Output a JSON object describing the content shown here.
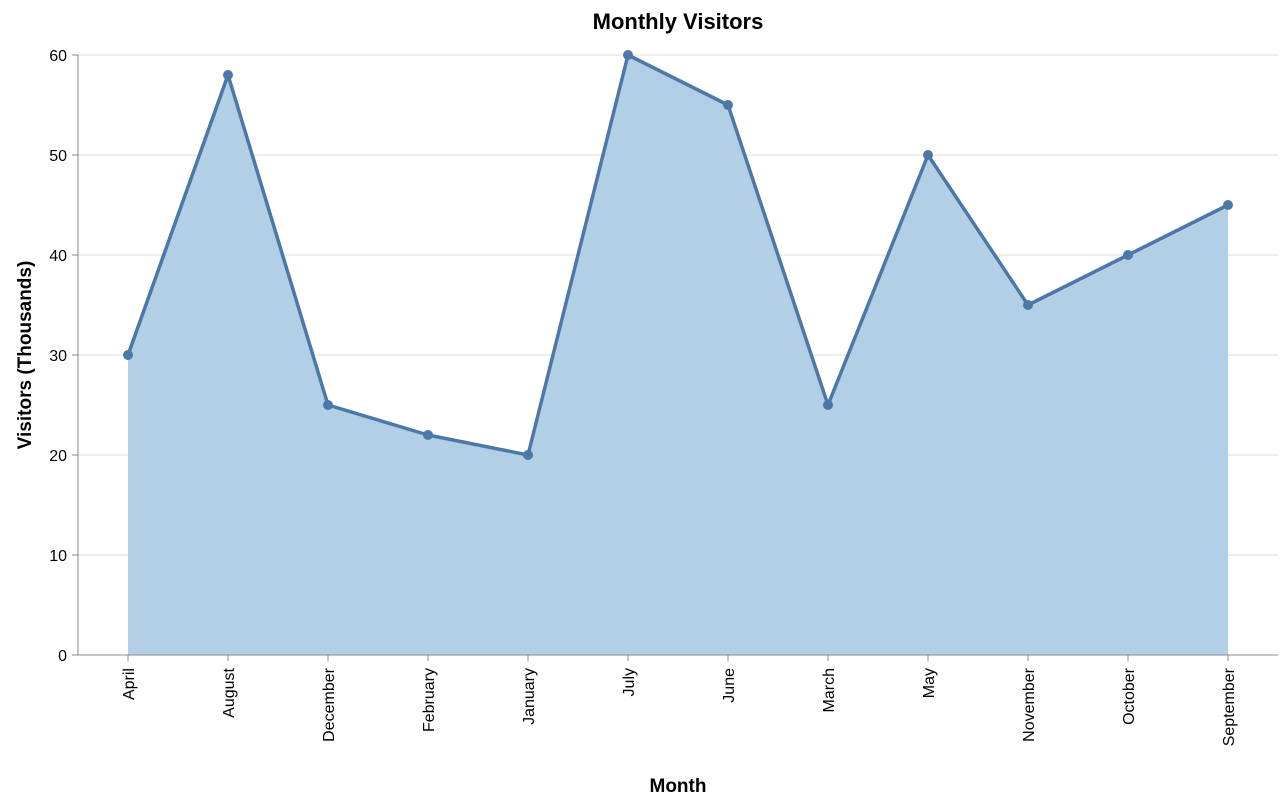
{
  "chart_data": {
    "type": "area",
    "title": "Monthly Visitors",
    "xlabel": "Month",
    "ylabel": "Visitors (Thousands)",
    "categories": [
      "April",
      "August",
      "December",
      "February",
      "January",
      "July",
      "June",
      "March",
      "May",
      "November",
      "October",
      "September"
    ],
    "values": [
      30,
      58,
      25,
      22,
      20,
      60,
      55,
      25,
      50,
      35,
      40,
      45
    ],
    "ylim": [
      0,
      60
    ],
    "yticks": [
      0,
      10,
      20,
      30,
      40,
      50,
      60
    ],
    "grid": true,
    "legend": "none",
    "colors": {
      "area_fill": "#b3cfe5",
      "line": "#4c78a8",
      "point": "#4c78a8"
    }
  }
}
